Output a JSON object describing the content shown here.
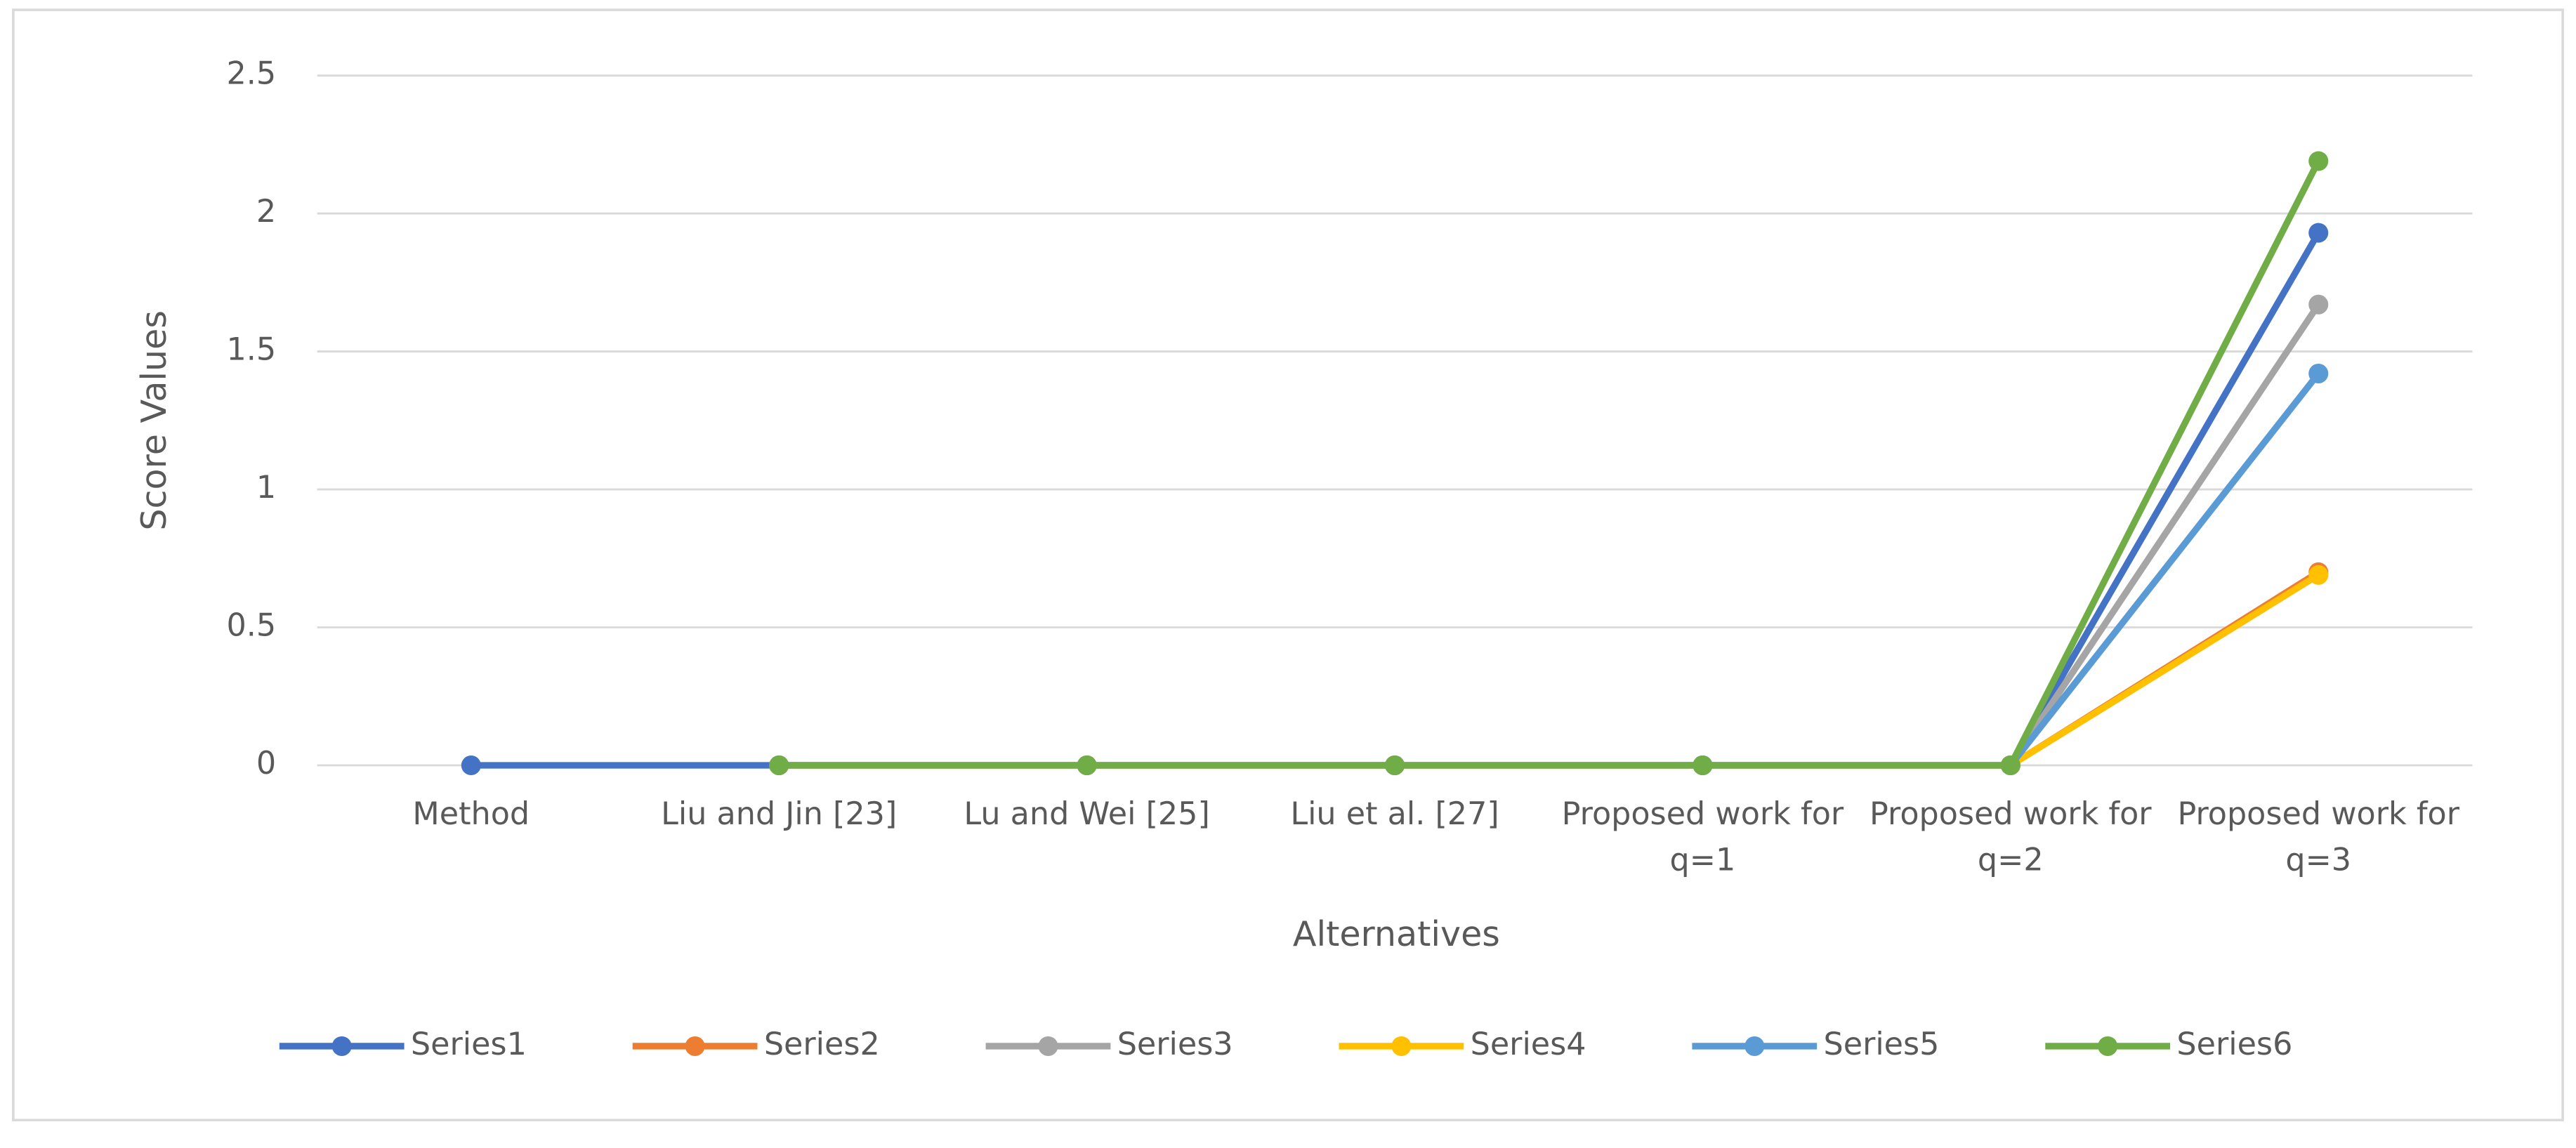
{
  "chart_data": {
    "type": "line",
    "x_label": "Alternatives",
    "y_label": "Score Values",
    "categories": [
      "Method",
      "Liu and Jin [23]",
      "Lu and Wei [25]",
      "Liu et al. [27]",
      "Proposed work for q=1",
      "Proposed work for q=2",
      "Proposed work for q=3"
    ],
    "series": [
      {
        "name": "Series1",
        "color": "#4472c4",
        "values": [
          0,
          0,
          0,
          0,
          0,
          0,
          1.93
        ]
      },
      {
        "name": "Series2",
        "color": "#ed7d31",
        "values": [
          null,
          0,
          0,
          0,
          0,
          0,
          0.7
        ]
      },
      {
        "name": "Series3",
        "color": "#a5a5a5",
        "values": [
          null,
          0,
          0,
          0,
          0,
          0,
          1.67
        ]
      },
      {
        "name": "Series4",
        "color": "#ffc000",
        "values": [
          null,
          0,
          0,
          0,
          0,
          0,
          0.69
        ]
      },
      {
        "name": "Series5",
        "color": "#5b9bd5",
        "values": [
          null,
          0,
          0,
          0,
          0,
          0,
          1.42
        ]
      },
      {
        "name": "Series6",
        "color": "#70ad47",
        "values": [
          null,
          0,
          0,
          0,
          0,
          0,
          2.19
        ]
      }
    ],
    "ylim": [
      0,
      2.5
    ],
    "yticks": [
      0,
      0.5,
      1,
      1.5,
      2,
      2.5
    ],
    "grid": true,
    "legend": "bottom"
  }
}
